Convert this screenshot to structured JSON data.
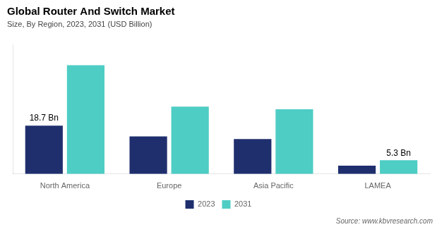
{
  "chart_data": {
    "type": "bar",
    "title": "Global Router And Switch Market",
    "subtitle": "Size, By Region, 2023, 2031 (USD Billion)",
    "source": "Source: www.kbvresearch.com",
    "categories": [
      "North America",
      "Europe",
      "Asia Pacific",
      "LAMEA"
    ],
    "series": [
      {
        "name": "2023",
        "color": "#1f2f6e",
        "values": [
          18.7,
          14.5,
          13.5,
          3.2
        ]
      },
      {
        "name": "2031",
        "color": "#4ecdc4",
        "values": [
          42.0,
          26.0,
          25.0,
          5.3
        ]
      }
    ],
    "ylim": [
      0,
      50
    ],
    "grid": false,
    "legend": "bottom",
    "tick_labels": "x",
    "annotations": [
      {
        "text": "18.7 Bn",
        "category": "North America",
        "series": "2023"
      },
      {
        "text": "5.3 Bn",
        "category": "LAMEA",
        "series": "2031"
      }
    ]
  }
}
